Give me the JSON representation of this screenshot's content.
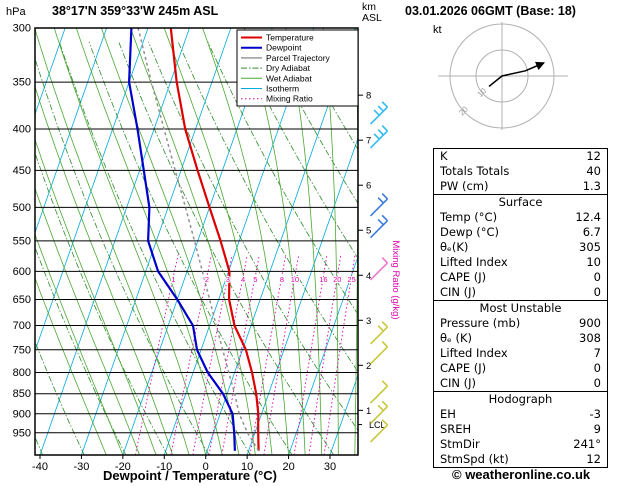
{
  "header": {
    "pressure_unit": "hPa",
    "station_title": "38°17'N 359°33'W 245m ASL",
    "alt_unit_line1": "km",
    "alt_unit_line2": "ASL",
    "datetime": "03.01.2026 06GMT (Base: 18)"
  },
  "legend": [
    {
      "label": "Temperature",
      "color": "#dd0000",
      "style": "solid",
      "width": 2
    },
    {
      "label": "Dewpoint",
      "color": "#0000cc",
      "style": "solid",
      "width": 2
    },
    {
      "label": "Parcel Trajectory",
      "color": "#909090",
      "style": "solid",
      "width": 1.4
    },
    {
      "label": "Dry Adiabat",
      "color": "#2d8b2d",
      "style": "dashdot",
      "width": 1
    },
    {
      "label": "Wet Adiabat",
      "color": "#4aa832",
      "style": "solid",
      "width": 1
    },
    {
      "label": "Isotherm",
      "color": "#00aadd",
      "style": "solid",
      "width": 1
    },
    {
      "label": "Mixing Ratio",
      "color": "#dd00aa",
      "style": "dotted",
      "width": 1
    }
  ],
  "axes": {
    "xlabel": "Dewpoint / Temperature (°C)",
    "x_ticks": [
      -40,
      -30,
      -20,
      -10,
      0,
      10,
      20,
      30
    ],
    "pressure_ticks": [
      300,
      350,
      400,
      450,
      500,
      550,
      600,
      650,
      700,
      750,
      800,
      850,
      900,
      950
    ],
    "km_ticks": [
      1,
      2,
      3,
      4,
      5,
      6,
      7,
      8
    ],
    "mixing_ratio_values": [
      1,
      2,
      3,
      4,
      5,
      8,
      10,
      16,
      20,
      25
    ],
    "mixing_ratio_label": "Mixing Ratio (g/kg)",
    "lcl_label": "LCL"
  },
  "chart_data": {
    "type": "line",
    "title": "Skew-T log-P sounding",
    "x_axis": {
      "label": "Dewpoint / Temperature (°C)",
      "ticks": [
        -40,
        -30,
        -20,
        -10,
        0,
        10,
        20,
        30
      ],
      "range": [
        -40,
        35
      ]
    },
    "y_axis": {
      "label": "hPa",
      "scale": "log",
      "ticks": [
        300,
        350,
        400,
        450,
        500,
        550,
        600,
        650,
        700,
        750,
        800,
        850,
        900,
        950
      ],
      "range": [
        300,
        1012
      ]
    },
    "series": [
      {
        "name": "Temperature",
        "color": "#dd0000",
        "points": [
          [
            1000,
            12.4
          ],
          [
            950,
            10.8
          ],
          [
            925,
            10.0
          ],
          [
            900,
            9.2
          ],
          [
            850,
            7.0
          ],
          [
            800,
            4.2
          ],
          [
            750,
            0.8
          ],
          [
            700,
            -4.0
          ],
          [
            650,
            -7.5
          ],
          [
            600,
            -9.8
          ],
          [
            550,
            -14.5
          ],
          [
            500,
            -20.0
          ],
          [
            450,
            -26.0
          ],
          [
            400,
            -32.5
          ],
          [
            350,
            -38.5
          ],
          [
            300,
            -44.5
          ]
        ]
      },
      {
        "name": "Dewpoint",
        "color": "#0000cc",
        "points": [
          [
            1000,
            6.7
          ],
          [
            950,
            5.0
          ],
          [
            900,
            3.0
          ],
          [
            850,
            -1.0
          ],
          [
            800,
            -6.5
          ],
          [
            750,
            -11.0
          ],
          [
            700,
            -14.0
          ],
          [
            650,
            -20.0
          ],
          [
            600,
            -27.0
          ],
          [
            550,
            -32.0
          ],
          [
            500,
            -34.5
          ],
          [
            450,
            -39.0
          ],
          [
            400,
            -44.0
          ],
          [
            350,
            -50.0
          ],
          [
            300,
            -54.0
          ]
        ]
      },
      {
        "name": "Parcel Trajectory",
        "color": "#909090",
        "points": [
          [
            1000,
            12.4
          ],
          [
            950,
            8.2
          ],
          [
            900,
            4.6
          ],
          [
            850,
            1.8
          ],
          [
            800,
            -1.4
          ],
          [
            750,
            -4.8
          ],
          [
            700,
            -8.4
          ],
          [
            650,
            -12.2
          ],
          [
            600,
            -16.3
          ],
          [
            550,
            -20.8
          ],
          [
            500,
            -25.8
          ],
          [
            450,
            -31.4
          ],
          [
            400,
            -37.6
          ],
          [
            350,
            -44.6
          ],
          [
            300,
            -52.4
          ]
        ]
      }
    ]
  },
  "wind_barbs": [
    {
      "p": 385,
      "color": "#33bbee",
      "ticks": 3
    },
    {
      "p": 412,
      "color": "#33bbee",
      "ticks": 3
    },
    {
      "p": 500,
      "color": "#3a7bdd",
      "ticks": 2
    },
    {
      "p": 532,
      "color": "#3a7bdd",
      "ticks": 2
    },
    {
      "p": 600,
      "color": "#ee77cc",
      "ticks": 1
    },
    {
      "p": 720,
      "color": "#c8c83c",
      "ticks": 2
    },
    {
      "p": 762,
      "color": "#c8c83c",
      "ticks": 1
    },
    {
      "p": 852,
      "color": "#c8c83c",
      "ticks": 1
    },
    {
      "p": 903,
      "color": "#c8c83c",
      "ticks": 2
    },
    {
      "p": 952,
      "color": "#c8c83c",
      "ticks": 1
    }
  ],
  "hodograph": {
    "unit": "kt",
    "ring_radii_kt": [
      10,
      20
    ],
    "ring_labels": [
      "10",
      "20"
    ],
    "trace_kt": [
      [
        -5,
        4
      ],
      [
        0,
        0
      ],
      [
        9,
        -2
      ],
      [
        16,
        -5
      ]
    ]
  },
  "table": {
    "groups": [
      {
        "title": "",
        "rows": [
          [
            "K",
            "12"
          ],
          [
            "Totals Totals",
            "40"
          ],
          [
            "PW (cm)",
            "1.3"
          ]
        ]
      },
      {
        "title": "Surface",
        "rows": [
          [
            "Temp (°C)",
            "12.4"
          ],
          [
            "Dewp (°C)",
            "6.7"
          ],
          [
            "θₑ(K)",
            "305"
          ],
          [
            "Lifted Index",
            "10"
          ],
          [
            "CAPE (J)",
            "0"
          ],
          [
            "CIN (J)",
            "0"
          ]
        ]
      },
      {
        "title": "Most Unstable",
        "rows": [
          [
            "Pressure (mb)",
            "900"
          ],
          [
            "θₑ (K)",
            "308"
          ],
          [
            "Lifted Index",
            "7"
          ],
          [
            "CAPE (J)",
            "0"
          ],
          [
            "CIN (J)",
            "0"
          ]
        ]
      },
      {
        "title": "Hodograph",
        "rows": [
          [
            "EH",
            "-3"
          ],
          [
            "SREH",
            "9"
          ],
          [
            "StmDir",
            "241°"
          ],
          [
            "StmSpd (kt)",
            "12"
          ]
        ]
      }
    ]
  },
  "footer": {
    "copyright": "© weatheronline.co.uk"
  }
}
